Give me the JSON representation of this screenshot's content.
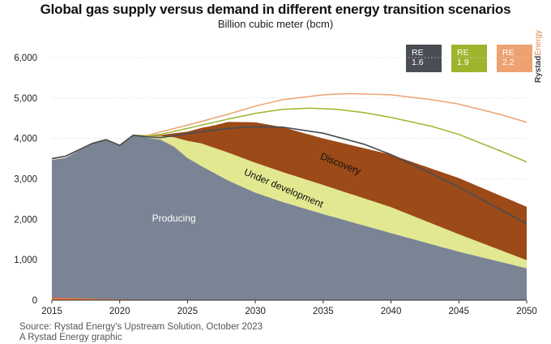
{
  "title": "Global gas supply versus demand in different energy transition scenarios",
  "subtitle": "Billion cubic meter (bcm)",
  "brand": {
    "part1": "Rystad",
    "part2": "Energy"
  },
  "source_lines": [
    "Source: Rystad Energy's Upstream Solution, October 2023",
    "A Rystad Energy graphic"
  ],
  "colors": {
    "producing": "#7a8494",
    "under_development": "#e2e890",
    "discovery": "#9c4a17",
    "small_orange": "#e8733a",
    "re16": "#4a4d53",
    "re19": "#9db52c",
    "re22": "#eea271"
  },
  "chart_data": {
    "type": "area",
    "title": "Global gas supply versus demand in different energy transition scenarios",
    "subtitle": "Billion cubic meter (bcm)",
    "xlim": [
      2015,
      2050
    ],
    "ylim": [
      0,
      6000
    ],
    "x_ticks": [
      2015,
      2020,
      2025,
      2030,
      2035,
      2040,
      2045,
      2050
    ],
    "y_ticks": [
      0,
      1000,
      2000,
      3000,
      4000,
      5000,
      6000
    ],
    "y_tick_labels": [
      "0",
      "1,000",
      "2,000",
      "3,000",
      "4,000",
      "5,000",
      "6,000"
    ],
    "legend_placement": "top-right",
    "stacked_areas": [
      {
        "name": "Producing",
        "label_at": [
          2024,
          1950
        ],
        "x": [
          2015,
          2016,
          2017,
          2018,
          2019,
          2020,
          2021,
          2022,
          2023,
          2024,
          2025,
          2026,
          2028,
          2030,
          2032,
          2035,
          2040,
          2045,
          2050
        ],
        "values": [
          3470,
          3520,
          3700,
          3880,
          3960,
          3820,
          4080,
          4020,
          3970,
          3800,
          3520,
          3320,
          2960,
          2660,
          2430,
          2130,
          1660,
          1200,
          790
        ]
      },
      {
        "name": "Under development",
        "label_at": [
          2032,
          2700
        ],
        "rotate": 23,
        "x": [
          2015,
          2020,
          2021,
          2022,
          2023,
          2024,
          2025,
          2026,
          2028,
          2030,
          2032,
          2035,
          2040,
          2045,
          2050
        ],
        "values": [
          0,
          0,
          0,
          20,
          90,
          230,
          420,
          560,
          690,
          740,
          740,
          720,
          640,
          430,
          200
        ]
      },
      {
        "name": "Discovery",
        "label_at": [
          2036.2,
          3300
        ],
        "rotate": 22,
        "x": [
          2015,
          2022,
          2023,
          2024,
          2025,
          2026,
          2027,
          2028,
          2030,
          2032,
          2035,
          2040,
          2045,
          2050
        ],
        "values": [
          0,
          0,
          20,
          100,
          230,
          380,
          560,
          760,
          1000,
          1110,
          1150,
          1300,
          1390,
          1320
        ]
      }
    ],
    "bottom_sliver": {
      "name": "",
      "x": [
        2015,
        2016,
        2017,
        2018,
        2019,
        2020,
        2021,
        2022,
        2023
      ],
      "values": [
        60,
        55,
        45,
        35,
        25,
        20,
        15,
        8,
        0
      ]
    },
    "series": [
      {
        "name": "RE\n1.6",
        "x": [
          2015,
          2016,
          2017,
          2018,
          2019,
          2020,
          2021,
          2022,
          2023,
          2025,
          2028,
          2030,
          2032,
          2035,
          2038,
          2040,
          2043,
          2045,
          2048,
          2050
        ],
        "values": [
          3500,
          3560,
          3720,
          3880,
          3970,
          3830,
          4080,
          4040,
          4020,
          4120,
          4250,
          4290,
          4280,
          4130,
          3860,
          3600,
          3130,
          2800,
          2250,
          1900
        ]
      },
      {
        "name": "RE\n1.9",
        "x": [
          2015,
          2016,
          2017,
          2018,
          2019,
          2020,
          2021,
          2022,
          2023,
          2025,
          2028,
          2030,
          2032,
          2034,
          2036,
          2038,
          2040,
          2043,
          2045,
          2048,
          2050
        ],
        "values": [
          3500,
          3560,
          3720,
          3880,
          3970,
          3830,
          4080,
          4060,
          4100,
          4250,
          4480,
          4620,
          4720,
          4750,
          4720,
          4640,
          4520,
          4300,
          4100,
          3700,
          3420
        ]
      },
      {
        "name": "RE\n2.2",
        "x": [
          2015,
          2016,
          2017,
          2018,
          2019,
          2020,
          2021,
          2022,
          2023,
          2025,
          2028,
          2030,
          2032,
          2035,
          2037,
          2040,
          2043,
          2045,
          2048,
          2050
        ],
        "values": [
          3500,
          3560,
          3720,
          3880,
          3970,
          3830,
          4080,
          4070,
          4160,
          4330,
          4600,
          4800,
          4960,
          5080,
          5110,
          5080,
          4960,
          4850,
          4600,
          4400
        ]
      }
    ]
  }
}
